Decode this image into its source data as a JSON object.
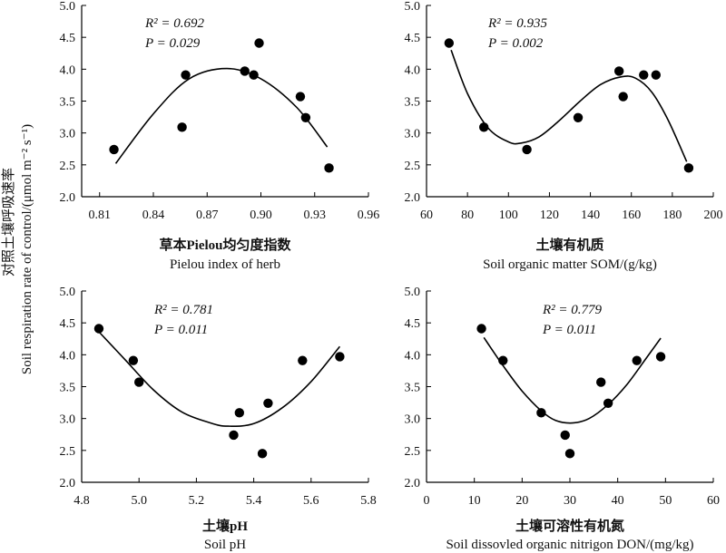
{
  "y_label_zh": "对照土壤呼吸速率",
  "y_label_en": "Soil respiration rate of control/(μmol m⁻² s⁻¹)",
  "chart_data": [
    {
      "type": "scatter",
      "xlabel_zh": "草本Pielou均匀度指数",
      "xlabel_en": "Pielou index of herb",
      "r2_text": "R² = 0.692",
      "p_text": "P = 0.029",
      "xlim": [
        0.8,
        0.96
      ],
      "ylim": [
        2.0,
        5.0
      ],
      "xticks": [
        0.81,
        0.84,
        0.87,
        0.9,
        0.93,
        0.96
      ],
      "xtick_labels": [
        "0.81",
        "0.84",
        "0.87",
        "0.90",
        "0.93",
        "0.96"
      ],
      "yticks": [
        2.0,
        2.5,
        3.0,
        3.5,
        4.0,
        4.5,
        5.0
      ],
      "ytick_labels": [
        "2.0",
        "2.5",
        "3.0",
        "3.5",
        "4.0",
        "4.5",
        "5.0"
      ],
      "points": [
        [
          0.818,
          2.74
        ],
        [
          0.856,
          3.09
        ],
        [
          0.858,
          3.91
        ],
        [
          0.891,
          3.97
        ],
        [
          0.896,
          3.91
        ],
        [
          0.899,
          4.41
        ],
        [
          0.922,
          3.57
        ],
        [
          0.925,
          3.24
        ],
        [
          0.938,
          2.45
        ]
      ],
      "fit": {
        "model": "quadratic",
        "x_range": [
          0.819,
          0.937
        ],
        "points": [
          [
            0.819,
            2.52
          ],
          [
            0.84,
            3.3
          ],
          [
            0.86,
            3.85
          ],
          [
            0.881,
            4.01
          ],
          [
            0.9,
            3.85
          ],
          [
            0.92,
            3.4
          ],
          [
            0.937,
            2.78
          ]
        ]
      }
    },
    {
      "type": "scatter",
      "xlabel_zh": "土壤有机质",
      "xlabel_en": "Soil organic matter SOM/(g/kg)",
      "r2_text": "R² = 0.935",
      "p_text": "P = 0.002",
      "xlim": [
        60,
        200
      ],
      "ylim": [
        2.0,
        5.0
      ],
      "xticks": [
        60,
        80,
        100,
        120,
        140,
        160,
        180,
        200
      ],
      "xtick_labels": [
        "60",
        "80",
        "100",
        "120",
        "140",
        "160",
        "180",
        "200"
      ],
      "yticks": [
        2.0,
        2.5,
        3.0,
        3.5,
        4.0,
        4.5,
        5.0
      ],
      "ytick_labels": [
        "2.0",
        "2.5",
        "3.0",
        "3.5",
        "4.0",
        "4.5",
        "5.0"
      ],
      "points": [
        [
          71,
          4.41
        ],
        [
          88,
          3.09
        ],
        [
          109,
          2.74
        ],
        [
          134,
          3.24
        ],
        [
          154,
          3.97
        ],
        [
          156,
          3.57
        ],
        [
          166,
          3.91
        ],
        [
          172,
          3.91
        ],
        [
          188,
          2.45
        ]
      ],
      "fit": {
        "model": "cubic",
        "x_range": [
          72,
          187
        ],
        "points": [
          [
            72,
            4.3
          ],
          [
            80,
            3.62
          ],
          [
            90,
            3.08
          ],
          [
            100,
            2.86
          ],
          [
            106,
            2.84
          ],
          [
            115,
            2.94
          ],
          [
            125,
            3.2
          ],
          [
            135,
            3.5
          ],
          [
            145,
            3.76
          ],
          [
            155,
            3.88
          ],
          [
            162,
            3.86
          ],
          [
            170,
            3.64
          ],
          [
            178,
            3.2
          ],
          [
            187,
            2.55
          ]
        ]
      }
    },
    {
      "type": "scatter",
      "xlabel_zh": "土壤pH",
      "xlabel_en": "Soil pH",
      "r2_text": "R² = 0.781",
      "p_text": "P = 0.011",
      "xlim": [
        4.8,
        5.8
      ],
      "ylim": [
        2.0,
        5.0
      ],
      "xticks": [
        4.8,
        5.0,
        5.2,
        5.4,
        5.6,
        5.8
      ],
      "xtick_labels": [
        "4.8",
        "5.0",
        "5.2",
        "5.4",
        "5.6",
        "5.8"
      ],
      "yticks": [
        2.0,
        2.5,
        3.0,
        3.5,
        4.0,
        4.5,
        5.0
      ],
      "ytick_labels": [
        "2.0",
        "2.5",
        "3.0",
        "3.5",
        "4.0",
        "4.5",
        "5.0"
      ],
      "points": [
        [
          4.86,
          4.41
        ],
        [
          4.98,
          3.91
        ],
        [
          5.0,
          3.57
        ],
        [
          5.33,
          2.74
        ],
        [
          5.35,
          3.09
        ],
        [
          5.43,
          2.45
        ],
        [
          5.45,
          3.24
        ],
        [
          5.57,
          3.91
        ],
        [
          5.7,
          3.97
        ]
      ],
      "fit": {
        "model": "quadratic",
        "x_range": [
          4.86,
          5.7
        ],
        "points": [
          [
            4.86,
            4.36
          ],
          [
            4.95,
            3.93
          ],
          [
            5.05,
            3.45
          ],
          [
            5.15,
            3.1
          ],
          [
            5.25,
            2.93
          ],
          [
            5.31,
            2.88
          ],
          [
            5.4,
            2.92
          ],
          [
            5.5,
            3.17
          ],
          [
            5.6,
            3.58
          ],
          [
            5.7,
            4.13
          ]
        ]
      }
    },
    {
      "type": "scatter",
      "xlabel_zh": "土壤可溶性有机氮",
      "xlabel_en": "Soil dissovled organic nitrigon DON/(mg/kg)",
      "r2_text": "R² = 0.779",
      "p_text": "P = 0.011",
      "xlim": [
        0,
        60
      ],
      "ylim": [
        2.0,
        5.0
      ],
      "xticks": [
        0,
        10,
        20,
        30,
        40,
        50,
        60
      ],
      "xtick_labels": [
        "0",
        "10",
        "20",
        "30",
        "40",
        "50",
        "60"
      ],
      "yticks": [
        2.0,
        2.5,
        3.0,
        3.5,
        4.0,
        4.5,
        5.0
      ],
      "ytick_labels": [
        "2.0",
        "2.5",
        "3.0",
        "3.5",
        "4.0",
        "4.5",
        "5.0"
      ],
      "points": [
        [
          11.5,
          4.41
        ],
        [
          16,
          3.91
        ],
        [
          24,
          3.09
        ],
        [
          29,
          2.74
        ],
        [
          30,
          2.45
        ],
        [
          36.5,
          3.57
        ],
        [
          38,
          3.24
        ],
        [
          44,
          3.91
        ],
        [
          49,
          3.97
        ]
      ],
      "fit": {
        "model": "quadratic",
        "x_range": [
          12,
          49
        ],
        "points": [
          [
            12,
            4.27
          ],
          [
            16,
            3.83
          ],
          [
            20,
            3.43
          ],
          [
            24,
            3.12
          ],
          [
            27,
            2.97
          ],
          [
            30.5,
            2.93
          ],
          [
            34,
            3.0
          ],
          [
            38,
            3.22
          ],
          [
            42,
            3.54
          ],
          [
            46,
            3.95
          ],
          [
            49,
            4.26
          ]
        ]
      }
    }
  ]
}
